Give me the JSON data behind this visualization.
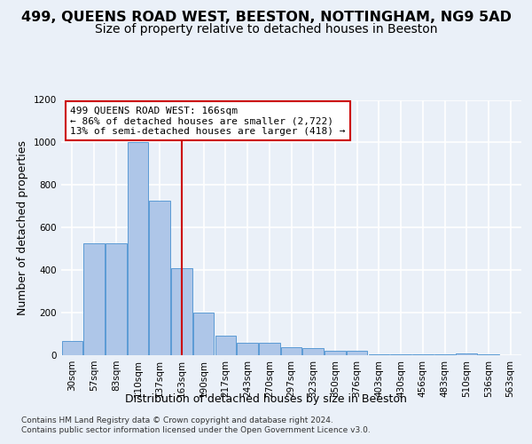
{
  "title": "499, QUEENS ROAD WEST, BEESTON, NOTTINGHAM, NG9 5AD",
  "subtitle": "Size of property relative to detached houses in Beeston",
  "xlabel": "Distribution of detached houses by size in Beeston",
  "ylabel": "Number of detached properties",
  "footer_line1": "Contains HM Land Registry data © Crown copyright and database right 2024.",
  "footer_line2": "Contains public sector information licensed under the Open Government Licence v3.0.",
  "bin_labels": [
    "30sqm",
    "57sqm",
    "83sqm",
    "110sqm",
    "137sqm",
    "163sqm",
    "190sqm",
    "217sqm",
    "243sqm",
    "270sqm",
    "297sqm",
    "323sqm",
    "350sqm",
    "376sqm",
    "403sqm",
    "430sqm",
    "456sqm",
    "483sqm",
    "510sqm",
    "536sqm",
    "563sqm"
  ],
  "bar_values": [
    65,
    525,
    525,
    1000,
    725,
    410,
    200,
    90,
    60,
    60,
    38,
    32,
    20,
    20,
    5,
    5,
    5,
    5,
    10,
    5,
    0
  ],
  "bar_color": "#aec6e8",
  "bar_edge_color": "#5b9bd5",
  "vline_x_index": 5,
  "vline_color": "#cc0000",
  "annotation_text": "499 QUEENS ROAD WEST: 166sqm\n← 86% of detached houses are smaller (2,722)\n13% of semi-detached houses are larger (418) →",
  "annotation_box_color": "#ffffff",
  "annotation_border_color": "#cc0000",
  "ylim": [
    0,
    1200
  ],
  "yticks": [
    0,
    200,
    400,
    600,
    800,
    1000,
    1200
  ],
  "bg_color": "#eaf0f8",
  "plot_bg_color": "#eaf0f8",
  "grid_color": "#ffffff",
  "title_fontsize": 11.5,
  "subtitle_fontsize": 10,
  "annotation_fontsize": 8,
  "tick_fontsize": 7.5,
  "ylabel_fontsize": 9,
  "xlabel_fontsize": 9
}
